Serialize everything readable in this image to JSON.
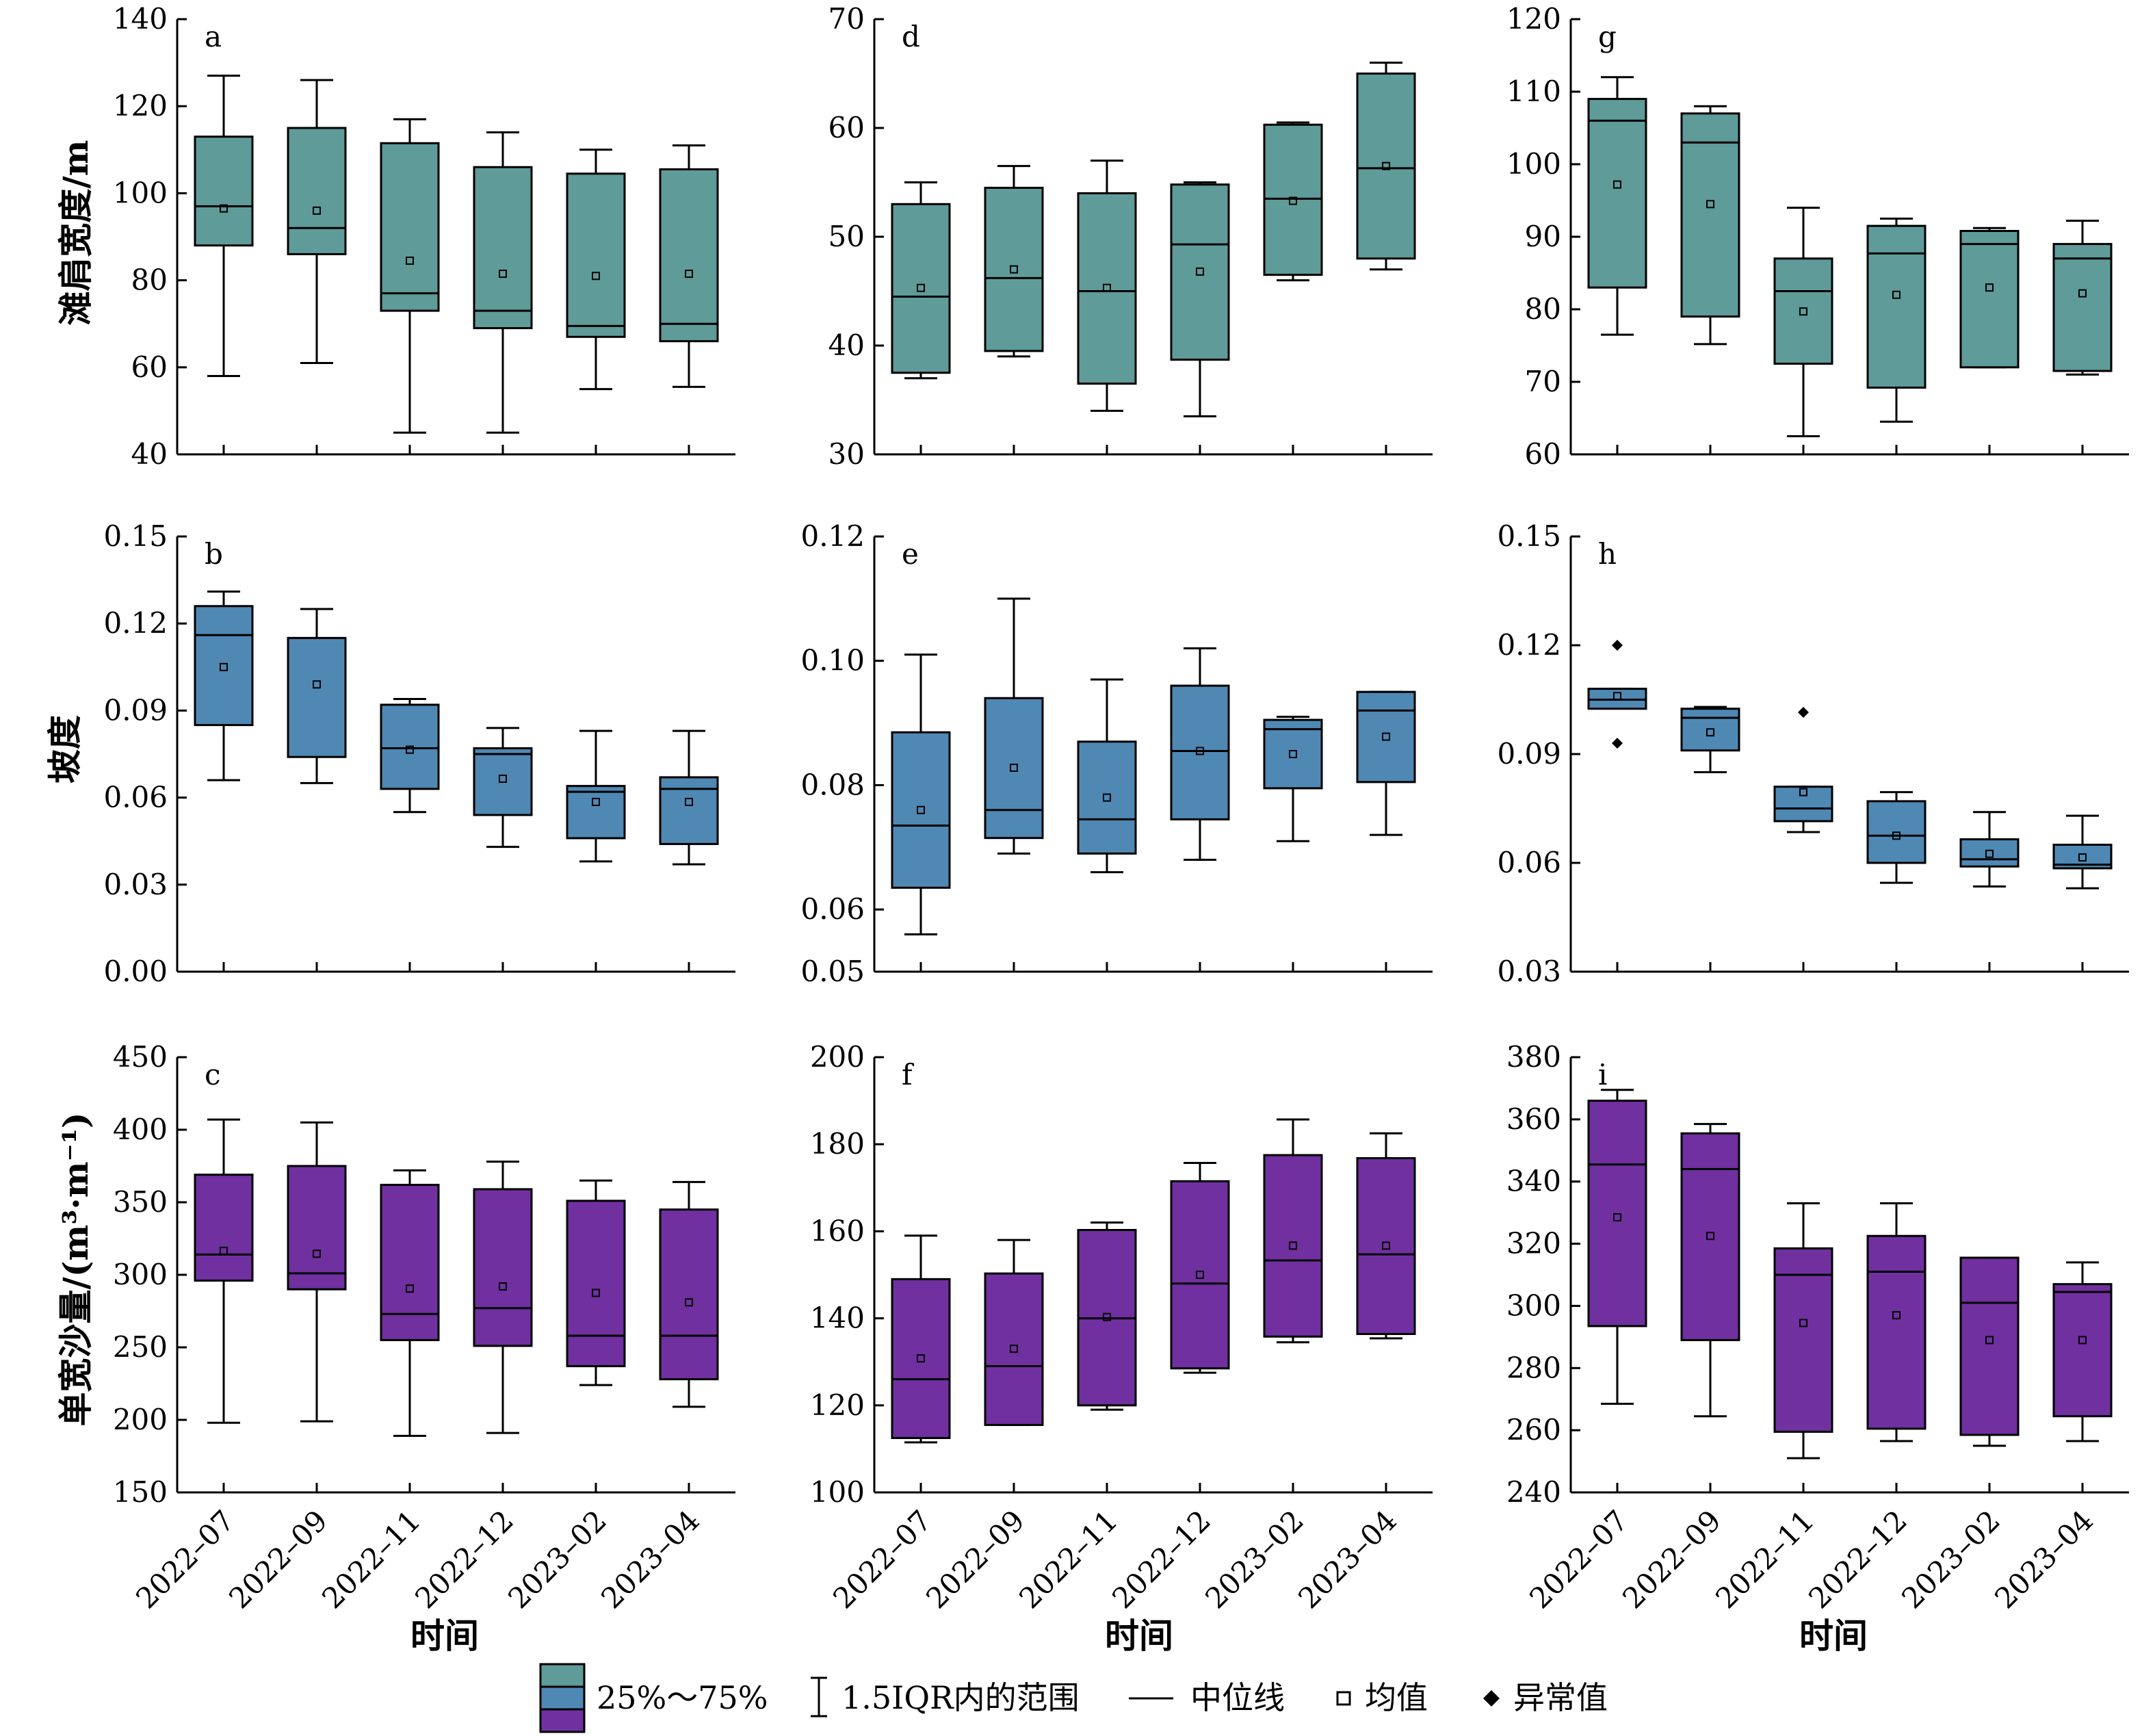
{
  "categories": [
    "2022–07",
    "2022–09",
    "2022–11",
    "2022–12",
    "2023–02",
    "2023–04"
  ],
  "row_titles": [
    "滩肩宽度/m",
    "坡度",
    "单宽沙量/(m³·m⁻¹)"
  ],
  "col_xlabel": "时间",
  "colors": {
    "teal": "#5f9b98",
    "blue": "#4f88b3",
    "purple": "#7030a0"
  },
  "legend": {
    "box": "25%～75%",
    "whisker": "1.5IQR内的范围",
    "median": "中位线",
    "mean": "均值",
    "outlier": "异常值"
  },
  "chart_data": [
    {
      "type": "box",
      "letter": "a",
      "color": "teal",
      "ylim": [
        40,
        140
      ],
      "yticks": [
        "40",
        "60",
        "80",
        "100",
        "120",
        "140"
      ],
      "boxes": [
        {
          "wl": 58,
          "q1": 88,
          "med": 97,
          "q3": 113,
          "wh": 127,
          "mean": 96.5
        },
        {
          "wl": 61,
          "q1": 86,
          "med": 92,
          "q3": 115,
          "wh": 126,
          "mean": 96
        },
        {
          "wl": 45,
          "q1": 73,
          "med": 77,
          "q3": 111.5,
          "wh": 117,
          "mean": 84.5
        },
        {
          "wl": 45,
          "q1": 69,
          "med": 73,
          "q3": 106,
          "wh": 114,
          "mean": 81.5
        },
        {
          "wl": 55,
          "q1": 67,
          "med": 69.5,
          "q3": 104.5,
          "wh": 110,
          "mean": 81
        },
        {
          "wl": 55.5,
          "q1": 66,
          "med": 70,
          "q3": 105.5,
          "wh": 111,
          "mean": 81.5
        }
      ]
    },
    {
      "type": "box",
      "letter": "d",
      "color": "teal",
      "ylim": [
        30,
        70
      ],
      "yticks": [
        "30",
        "40",
        "50",
        "60",
        "70"
      ],
      "boxes": [
        {
          "wl": 37,
          "q1": 37.5,
          "med": 44.5,
          "q3": 53,
          "wh": 55,
          "mean": 45.3
        },
        {
          "wl": 39,
          "q1": 39.5,
          "med": 46.2,
          "q3": 54.5,
          "wh": 56.5,
          "mean": 47
        },
        {
          "wl": 34,
          "q1": 36.5,
          "med": 45,
          "q3": 54,
          "wh": 57,
          "mean": 45.3
        },
        {
          "wl": 33.5,
          "q1": 38.7,
          "med": 49.3,
          "q3": 54.8,
          "wh": 55,
          "mean": 46.8
        },
        {
          "wl": 46,
          "q1": 46.5,
          "med": 53.5,
          "q3": 60.3,
          "wh": 60.5,
          "mean": 53.3
        },
        {
          "wl": 47,
          "q1": 48,
          "med": 56.3,
          "q3": 65,
          "wh": 66,
          "mean": 56.5
        }
      ]
    },
    {
      "type": "box",
      "letter": "g",
      "color": "teal",
      "ylim": [
        60,
        120
      ],
      "yticks": [
        "60",
        "70",
        "80",
        "90",
        "100",
        "110",
        "120"
      ],
      "boxes": [
        {
          "wl": 76.5,
          "q1": 83,
          "med": 106,
          "q3": 109,
          "wh": 112,
          "mean": 97.2
        },
        {
          "wl": 75.2,
          "q1": 79,
          "med": 103,
          "q3": 107,
          "wh": 108,
          "mean": 94.5
        },
        {
          "wl": 62.5,
          "q1": 72.5,
          "med": 82.5,
          "q3": 87,
          "wh": 94,
          "mean": 79.7
        },
        {
          "wl": 64.5,
          "q1": 69.2,
          "med": 87.7,
          "q3": 91.5,
          "wh": 92.5,
          "mean": 82
        },
        {
          "wl": 72,
          "q1": 72,
          "med": 89,
          "q3": 90.8,
          "wh": 91.2,
          "mean": 83
        },
        {
          "wl": 71,
          "q1": 71.5,
          "med": 87,
          "q3": 89,
          "wh": 92.2,
          "mean": 82.2
        }
      ]
    },
    {
      "type": "box",
      "letter": "b",
      "color": "blue",
      "ylim": [
        0,
        0.15
      ],
      "yticks": [
        "0.00",
        "0.03",
        "0.06",
        "0.09",
        "0.12",
        "0.15"
      ],
      "boxes": [
        {
          "wl": 0.066,
          "q1": 0.085,
          "med": 0.116,
          "q3": 0.126,
          "wh": 0.131,
          "mean": 0.105
        },
        {
          "wl": 0.065,
          "q1": 0.074,
          "med": 0.115,
          "q3": 0.115,
          "wh": 0.125,
          "mean": 0.099
        },
        {
          "wl": 0.055,
          "q1": 0.063,
          "med": 0.077,
          "q3": 0.092,
          "wh": 0.094,
          "mean": 0.0765
        },
        {
          "wl": 0.043,
          "q1": 0.054,
          "med": 0.075,
          "q3": 0.077,
          "wh": 0.084,
          "mean": 0.0665
        },
        {
          "wl": 0.038,
          "q1": 0.046,
          "med": 0.062,
          "q3": 0.064,
          "wh": 0.083,
          "mean": 0.0585
        },
        {
          "wl": 0.037,
          "q1": 0.044,
          "med": 0.063,
          "q3": 0.067,
          "wh": 0.083,
          "mean": 0.0585
        }
      ]
    },
    {
      "type": "box",
      "letter": "e",
      "color": "blue",
      "ylim": [
        0.05,
        0.12
      ],
      "yticks": [
        "0.05",
        "0.06",
        "0.08",
        "0.10",
        "0.12"
      ],
      "boxes": [
        {
          "wl": 0.056,
          "q1": 0.0635,
          "med": 0.0735,
          "q3": 0.0885,
          "wh": 0.101,
          "mean": 0.076
        },
        {
          "wl": 0.069,
          "q1": 0.0715,
          "med": 0.076,
          "q3": 0.094,
          "wh": 0.11,
          "mean": 0.0828
        },
        {
          "wl": 0.066,
          "q1": 0.069,
          "med": 0.0745,
          "q3": 0.087,
          "wh": 0.097,
          "mean": 0.078
        },
        {
          "wl": 0.068,
          "q1": 0.0745,
          "med": 0.0855,
          "q3": 0.096,
          "wh": 0.102,
          "mean": 0.0855
        },
        {
          "wl": 0.071,
          "q1": 0.0795,
          "med": 0.089,
          "q3": 0.0905,
          "wh": 0.091,
          "mean": 0.085
        },
        {
          "wl": 0.072,
          "q1": 0.0805,
          "med": 0.092,
          "q3": 0.095,
          "wh": 0.095,
          "mean": 0.0878
        }
      ]
    },
    {
      "type": "box",
      "letter": "h",
      "color": "blue",
      "ylim": [
        0.03,
        0.15
      ],
      "yticks": [
        "0.03",
        "0.06",
        "0.09",
        "0.12",
        "0.15"
      ],
      "boxes": [
        {
          "wl": 0.105,
          "q1": 0.1025,
          "med": 0.105,
          "q3": 0.108,
          "wh": 0.108,
          "mean": 0.106,
          "outliers": [
            0.12,
            0.093
          ]
        },
        {
          "wl": 0.085,
          "q1": 0.091,
          "med": 0.1,
          "q3": 0.1025,
          "wh": 0.103,
          "mean": 0.096
        },
        {
          "wl": 0.0685,
          "q1": 0.0715,
          "med": 0.075,
          "q3": 0.081,
          "wh": 0.081,
          "mean": 0.0795,
          "outliers": [
            0.1015
          ]
        },
        {
          "wl": 0.0545,
          "q1": 0.06,
          "med": 0.0675,
          "q3": 0.077,
          "wh": 0.0795,
          "mean": 0.0675
        },
        {
          "wl": 0.0535,
          "q1": 0.059,
          "med": 0.061,
          "q3": 0.0665,
          "wh": 0.074,
          "mean": 0.0625
        },
        {
          "wl": 0.053,
          "q1": 0.0585,
          "med": 0.0595,
          "q3": 0.065,
          "wh": 0.073,
          "mean": 0.0615
        }
      ]
    },
    {
      "type": "box",
      "letter": "c",
      "color": "purple",
      "ylim": [
        150,
        450
      ],
      "yticks": [
        "150",
        "200",
        "250",
        "300",
        "350",
        "400",
        "450"
      ],
      "boxes": [
        {
          "wl": 198,
          "q1": 296,
          "med": 314,
          "q3": 369,
          "wh": 407,
          "mean": 316.5
        },
        {
          "wl": 199,
          "q1": 290,
          "med": 301,
          "q3": 375,
          "wh": 405,
          "mean": 314.5
        },
        {
          "wl": 189,
          "q1": 255,
          "med": 273,
          "q3": 362,
          "wh": 372,
          "mean": 290.5
        },
        {
          "wl": 191,
          "q1": 251,
          "med": 277,
          "q3": 359,
          "wh": 378,
          "mean": 292
        },
        {
          "wl": 224,
          "q1": 237,
          "med": 258,
          "q3": 351,
          "wh": 365,
          "mean": 287.5
        },
        {
          "wl": 209,
          "q1": 228,
          "med": 258,
          "q3": 345,
          "wh": 364,
          "mean": 281
        }
      ]
    },
    {
      "type": "box",
      "letter": "f",
      "color": "purple",
      "ylim": [
        100,
        200
      ],
      "yticks": [
        "100",
        "120",
        "140",
        "160",
        "180",
        "200"
      ],
      "boxes": [
        {
          "wl": 111.5,
          "q1": 112.5,
          "med": 126,
          "q3": 149,
          "wh": 159,
          "mean": 130.8
        },
        {
          "wl": 115.5,
          "q1": 115.5,
          "med": 129,
          "q3": 150.3,
          "wh": 158,
          "mean": 133
        },
        {
          "wl": 119,
          "q1": 120,
          "med": 140,
          "q3": 160.3,
          "wh": 162,
          "mean": 140.3
        },
        {
          "wl": 127.5,
          "q1": 128.5,
          "med": 148,
          "q3": 171.5,
          "wh": 175.7,
          "mean": 150
        },
        {
          "wl": 134.5,
          "q1": 135.8,
          "med": 153.3,
          "q3": 177.5,
          "wh": 185.7,
          "mean": 156.7
        },
        {
          "wl": 135.4,
          "q1": 136.4,
          "med": 154.7,
          "q3": 176.8,
          "wh": 182.5,
          "mean": 156.7
        }
      ]
    },
    {
      "type": "box",
      "letter": "i",
      "color": "purple",
      "ylim": [
        240,
        380
      ],
      "yticks": [
        "240",
        "260",
        "280",
        "300",
        "320",
        "340",
        "360",
        "380"
      ],
      "boxes": [
        {
          "wl": 268.5,
          "q1": 293.5,
          "med": 345.5,
          "q3": 366,
          "wh": 369.5,
          "mean": 328.5
        },
        {
          "wl": 264.5,
          "q1": 289,
          "med": 344,
          "q3": 355.5,
          "wh": 358.5,
          "mean": 322.5
        },
        {
          "wl": 251,
          "q1": 259.5,
          "med": 310,
          "q3": 318.5,
          "wh": 333,
          "mean": 294.5
        },
        {
          "wl": 256.5,
          "q1": 260.5,
          "med": 311,
          "q3": 322.5,
          "wh": 333,
          "mean": 297
        },
        {
          "wl": 255,
          "q1": 258.5,
          "med": 301,
          "q3": 315.5,
          "wh": 315.5,
          "mean": 289
        },
        {
          "wl": 256.5,
          "q1": 264.5,
          "med": 304.5,
          "q3": 307,
          "wh": 314,
          "mean": 289
        }
      ]
    }
  ]
}
